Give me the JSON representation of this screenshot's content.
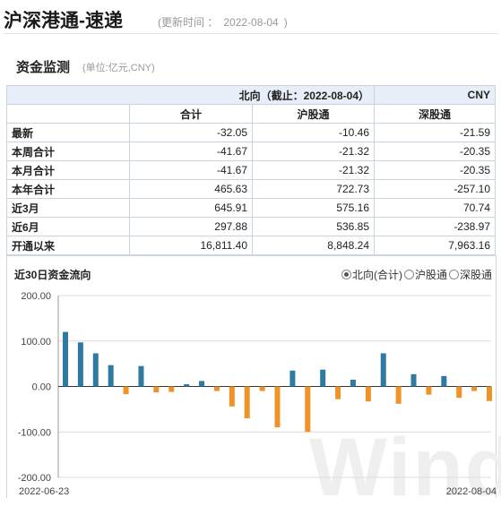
{
  "page": {
    "title": "沪深港通-速递",
    "update_prefix": "(更新时间 ：",
    "update_date": "2022-08-04",
    "update_suffix": ")",
    "section_title": "资金监测",
    "unit_note": "(单位:亿元,CNY)"
  },
  "table": {
    "header_main": "北向（截止：2022-08-04）",
    "header_currency": "CNY",
    "columns": [
      "合计",
      "沪股通",
      "深股通"
    ],
    "rows": [
      {
        "label": "最新",
        "values": [
          "-32.05",
          "-10.46",
          "-21.59"
        ]
      },
      {
        "label": "本周合计",
        "values": [
          "-41.67",
          "-21.32",
          "-20.35"
        ]
      },
      {
        "label": "本月合计",
        "values": [
          "-41.67",
          "-21.32",
          "-20.35"
        ]
      },
      {
        "label": "本年合计",
        "values": [
          "465.63",
          "722.73",
          "-257.10"
        ]
      },
      {
        "label": "近3月",
        "values": [
          "645.91",
          "575.16",
          "70.74"
        ]
      },
      {
        "label": "近6月",
        "values": [
          "297.88",
          "536.85",
          "-238.97"
        ]
      },
      {
        "label": "开通以来",
        "values": [
          "16,811.40",
          "8,848.24",
          "7,963.16"
        ]
      }
    ]
  },
  "chart_title": "近30日资金流向",
  "legend": {
    "options": [
      "北向(合计)",
      "沪股通",
      "深股通"
    ],
    "selected": 0
  },
  "watermark": "Wind",
  "colors": {
    "positive": "#2e7aa3",
    "negative": "#f0922a",
    "grid": "#dcdcdc"
  },
  "chart_data": {
    "type": "bar",
    "title": "",
    "xlabel": "",
    "ylabel": "",
    "ylim": [
      -200,
      200
    ],
    "yticks": [
      "-200.00",
      "-100.00",
      "0.00",
      "100.00",
      "200.00"
    ],
    "x_start_label": "2022-06-23",
    "x_end_label": "2022-08-04",
    "grid": true,
    "values": [
      120,
      97,
      73,
      47,
      -17,
      45,
      -13,
      -12,
      5,
      12,
      -10,
      -44,
      -70,
      -10,
      -90,
      35,
      -100,
      37,
      -28,
      15,
      -33,
      73,
      -38,
      27,
      -18,
      23,
      -25,
      -10,
      -32
    ]
  }
}
